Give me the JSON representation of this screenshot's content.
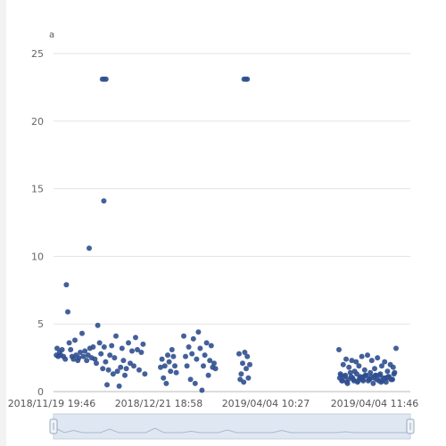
{
  "chart_data": {
    "type": "scatter",
    "title": "",
    "xlabel": "",
    "ylabel": "a",
    "ylim": [
      0,
      25
    ],
    "y_ticks": [
      "0",
      "5",
      "10",
      "15",
      "20",
      "25"
    ],
    "x_tick_labels": [
      "2018/11/19 19:46",
      "2018/12/21 18:58",
      "2019/04/04 10:27",
      "2019/04/04 11:46"
    ],
    "grid": "horizontal",
    "point_color": "#2f4f8f",
    "has_zoom_slider": true,
    "series": [
      {
        "x": [
          1,
          1.3,
          1.7,
          2,
          2.4,
          2.8,
          3.3,
          3.6,
          4,
          4.4,
          4.8,
          5.2,
          5.6,
          6,
          6.3,
          6.8,
          7.1,
          7.5,
          8,
          8.4,
          8.8,
          9.3,
          9.7,
          10.2,
          10.7,
          11.1,
          11.6,
          12,
          12.4,
          12.9,
          13.3,
          13.8,
          14.2,
          14.6,
          15,
          15.4,
          15.8,
          16.3,
          16.7,
          17.1,
          17.5,
          17.9,
          18.4,
          18.8,
          19.2,
          19.6,
          20,
          20.4,
          21,
          21.5,
          22,
          22.5,
          23,
          23.5,
          24,
          24.6,
          25.1,
          25.6,
          30,
          30.4,
          30.8,
          31.2,
          31.6,
          32,
          32.4,
          32.8,
          33.2,
          33.6,
          34,
          34.4,
          36.5,
          37,
          37.4,
          37.9,
          38.4,
          38.8,
          39.2,
          39.7,
          40.1,
          40.6,
          41.1,
          41.6,
          42,
          42.4,
          42.9,
          43.4,
          43.8,
          44.2,
          44.6,
          45,
          45.4,
          52,
          52.3,
          52.6,
          53,
          53.3,
          53.6,
          54,
          54.3,
          54.6,
          55,
          80,
          80.4,
          80.8,
          81.2,
          81.6,
          82,
          82.4,
          82.8,
          83.2,
          83.6,
          84,
          84.4,
          84.8,
          85.2,
          85.6,
          86,
          86.4,
          86.8,
          87.2,
          87.6,
          88,
          88.4,
          88.8,
          89.2,
          89.6,
          90,
          90.4,
          90.8,
          91.2,
          91.6,
          92,
          92.4,
          92.8,
          93.2,
          93.6,
          94,
          94.4,
          94.8,
          95.2,
          95.6,
          96,
          80.2,
          81,
          81.8,
          82.6,
          83.4,
          84.2,
          85,
          85.8,
          86.6,
          87.4,
          88.2,
          89,
          89.8,
          90.6,
          91.4,
          92.2,
          93,
          93.8,
          94.6,
          95.4,
          80.6,
          82.2,
          83.8,
          85.4,
          87,
          88.6,
          90.2,
          91.8,
          93.4,
          95,
          13.7,
          14.2,
          14.7,
          53.4,
          53.9,
          54.3,
          0.8,
          10,
          14.1
        ],
        "y": [
          3.2,
          2.6,
          2.9,
          2.7,
          3.1,
          2.6,
          2.4,
          7.9,
          5.9,
          3.6,
          3.1,
          2.6,
          2.4,
          3.8,
          2.7,
          2.3,
          2.5,
          2.9,
          4.3,
          2.6,
          3,
          2.3,
          2.7,
          3.2,
          2.5,
          3.3,
          2.4,
          2.1,
          4.9,
          3.6,
          2.8,
          1.7,
          3.3,
          2.2,
          0.5,
          1.6,
          2.7,
          3.4,
          1.3,
          2.5,
          4.1,
          1.5,
          0.4,
          1.8,
          3.2,
          2.3,
          1.2,
          1.7,
          3.6,
          2.1,
          3,
          1.9,
          4,
          3.1,
          1.6,
          2.9,
          3.5,
          1.3,
          1.8,
          2.4,
          1,
          1.9,
          0.6,
          2.7,
          2.2,
          1.5,
          3.1,
          2.6,
          1.9,
          1.4,
          4.1,
          2.6,
          1.9,
          3.3,
          0.9,
          2.8,
          3.9,
          0.6,
          2.4,
          4.4,
          3.2,
          0.1,
          1.9,
          2.7,
          3.6,
          1.2,
          2.3,
          3.4,
          1.8,
          2.1,
          1.7,
          2.8,
          0.9,
          1.3,
          2.1,
          0.7,
          2.9,
          1.7,
          2.6,
          1,
          2,
          3.1,
          1.3,
          0.8,
          2,
          1.1,
          2.4,
          0.6,
          1.8,
          1.4,
          2.3,
          0.9,
          1.5,
          2.2,
          0.7,
          1.9,
          1.1,
          2.6,
          0.8,
          1.6,
          1.2,
          2.7,
          0.9,
          1.4,
          2.3,
          0.6,
          1.7,
          1.2,
          2.5,
          0.8,
          1.3,
          1.9,
          1,
          2.2,
          0.7,
          1.5,
          1.1,
          2,
          0.9,
          1.8,
          1.4,
          3.2,
          1,
          0.8,
          1.2,
          0.9,
          1.1,
          0.8,
          1.3,
          1,
          0.9,
          1.2,
          0.8,
          1.1,
          1,
          0.9,
          1.2,
          0.8,
          1,
          1.1,
          0.9,
          1.3,
          1.2,
          0.7,
          1,
          0.8,
          1.1,
          0.9,
          1.2,
          0.7,
          1,
          0.9,
          23.1,
          23.1,
          23.1,
          23.1,
          23.1,
          23.1,
          2.7,
          10.6,
          14.1
        ]
      }
    ],
    "slider_series": [
      2,
      1,
      1.5,
      1,
      1,
      1,
      1.8,
      1,
      1,
      1,
      1,
      2,
      1,
      1,
      1,
      1.3,
      1,
      1,
      1,
      1.6,
      1,
      1,
      1,
      1,
      1,
      1.5,
      1,
      1,
      1,
      1,
      1,
      1,
      1.2,
      1,
      1,
      1,
      1,
      1,
      1,
      1
    ]
  }
}
